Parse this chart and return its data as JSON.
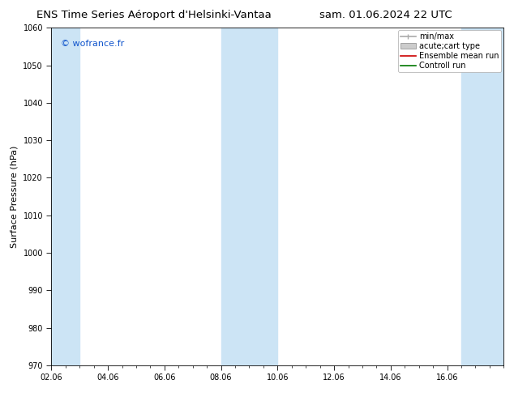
{
  "title_left": "ENS Time Series Aéroport d'Helsinki-Vantaa",
  "title_right": "sam. 01.06.2024 22 UTC",
  "ylabel": "Surface Pressure (hPa)",
  "watermark": "© wofrance.fr",
  "ylim": [
    970,
    1060
  ],
  "yticks": [
    970,
    980,
    990,
    1000,
    1010,
    1020,
    1030,
    1040,
    1050,
    1060
  ],
  "xtick_labels": [
    "02.06",
    "04.06",
    "06.06",
    "08.06",
    "10.06",
    "12.06",
    "14.06",
    "16.06"
  ],
  "xtick_positions": [
    0,
    2,
    4,
    6,
    8,
    10,
    12,
    14
  ],
  "x_min": 0,
  "x_max": 16,
  "shaded_bands": [
    {
      "x_start": 0.0,
      "x_end": 1.0,
      "color": "#cce4f5"
    },
    {
      "x_start": 6.0,
      "x_end": 8.0,
      "color": "#cce4f5"
    },
    {
      "x_start": 14.5,
      "x_end": 16.0,
      "color": "#cce4f5"
    }
  ],
  "legend_entries": [
    {
      "label": "min/max",
      "color": "#aaaaaa",
      "type": "errorbar"
    },
    {
      "label": "acute;cart type",
      "color": "#cccccc",
      "type": "fill"
    },
    {
      "label": "Ensemble mean run",
      "color": "#cc0000",
      "type": "line"
    },
    {
      "label": "Controll run",
      "color": "#007700",
      "type": "line"
    }
  ],
  "background_color": "#ffffff",
  "plot_bg_color": "#ffffff",
  "title_fontsize": 9.5,
  "label_fontsize": 8,
  "tick_fontsize": 7,
  "legend_fontsize": 7,
  "watermark_fontsize": 8,
  "watermark_color": "#1155cc"
}
